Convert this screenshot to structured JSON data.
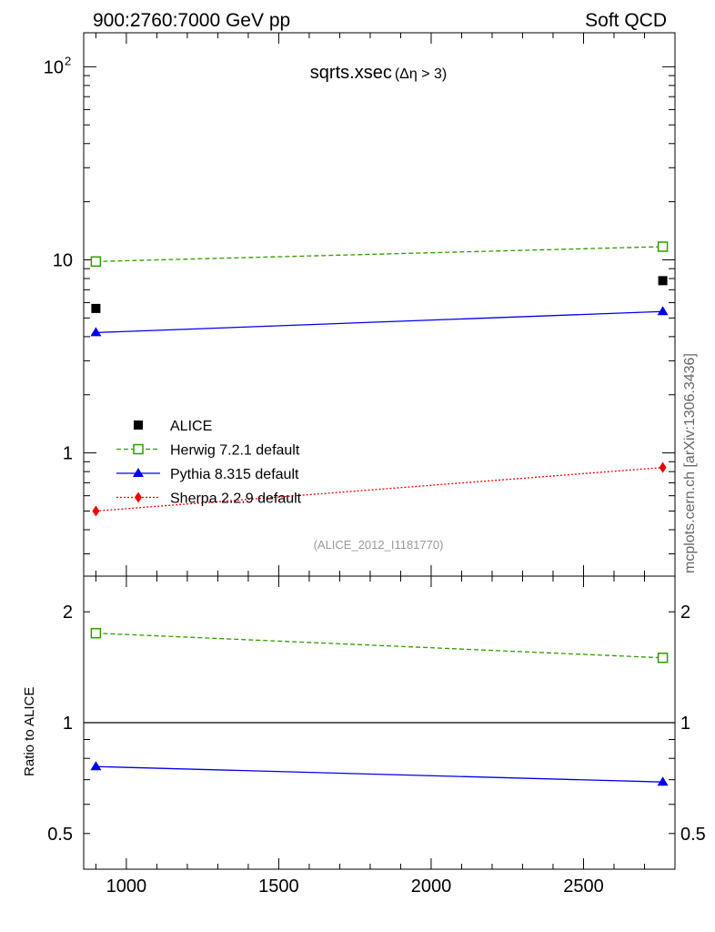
{
  "header": {
    "left": "900:2760:7000 GeV pp",
    "right": "Soft QCD"
  },
  "side_label": "mcplots.cern.ch [arXiv:1306.3436]",
  "colors": {
    "data": "#000000",
    "herwig": "#339900",
    "pythia": "#0000ee",
    "sherpa": "#ee0000",
    "analysis_label": "#999999"
  },
  "chart_data": [
    {
      "type": "scatter",
      "title": "sqrts.xsec",
      "title_suffix": "(Δη > 3)",
      "analysis_label": "(ALICE_2012_I1181770)",
      "xlim": [
        860,
        2800
      ],
      "ylim": [
        0.23,
        150
      ],
      "yscale": "log",
      "ytick_labels": [
        "1",
        "10",
        "10^2"
      ],
      "legend_position": "middle-left",
      "series": [
        {
          "name": "ALICE",
          "marker": "filled-square",
          "line": "none",
          "color": "#000000",
          "points": [
            [
              900,
              5.6
            ],
            [
              2760,
              7.8
            ]
          ]
        },
        {
          "name": "Herwig 7.2.1 default",
          "marker": "open-square",
          "line": "dashed",
          "color": "#339900",
          "points": [
            [
              900,
              9.8
            ],
            [
              2760,
              11.7
            ]
          ]
        },
        {
          "name": "Pythia 8.315 default",
          "marker": "filled-triangle",
          "line": "solid",
          "color": "#0000ee",
          "points": [
            [
              900,
              4.2
            ],
            [
              2760,
              5.4
            ]
          ]
        },
        {
          "name": "Sherpa 2.2.9 default",
          "marker": "filled-diamond",
          "line": "dotted",
          "color": "#ee0000",
          "points": [
            [
              900,
              0.5
            ],
            [
              2760,
              0.84
            ]
          ]
        }
      ]
    },
    {
      "type": "line",
      "ylabel": "Ratio to ALICE",
      "xlim": [
        860,
        2800
      ],
      "ylim": [
        0.4,
        2.5
      ],
      "yscale": "log",
      "ytick_labels": [
        "0.5",
        "1",
        "2"
      ],
      "xtick_labels": [
        "1000",
        "1500",
        "2000",
        "2500"
      ],
      "reference_line": 1,
      "series": [
        {
          "name": "Herwig 7.2.1 default",
          "marker": "open-square",
          "line": "dashed",
          "color": "#339900",
          "points": [
            [
              900,
              1.75
            ],
            [
              2760,
              1.5
            ]
          ]
        },
        {
          "name": "Pythia 8.315 default",
          "marker": "filled-triangle",
          "line": "solid",
          "color": "#0000ee",
          "points": [
            [
              900,
              0.76
            ],
            [
              2760,
              0.69
            ]
          ]
        }
      ]
    }
  ]
}
